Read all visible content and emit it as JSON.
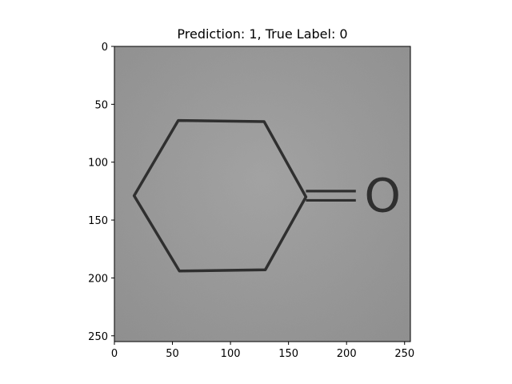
{
  "chart_data": {
    "type": "image",
    "title": "Prediction: 1, True Label: 0",
    "xlabel": "",
    "ylabel": "",
    "xlim": [
      0,
      255
    ],
    "ylim": [
      255,
      0
    ],
    "xticks": [
      0,
      50,
      100,
      150,
      200,
      250
    ],
    "yticks": [
      0,
      50,
      100,
      150,
      200,
      250
    ],
    "grid": false,
    "colors": {
      "image_background": "#9a9a9a",
      "stroke": "#2f2f2f",
      "axes": "#000000"
    },
    "image_content": {
      "molecule": "cyclohexanone",
      "hexagon_vertices": [
        [
          55,
          64
        ],
        [
          129,
          65
        ],
        [
          165,
          130
        ],
        [
          130,
          193
        ],
        [
          56,
          194
        ],
        [
          17,
          129
        ]
      ],
      "double_bond": {
        "from_x": 165,
        "to_x": 208,
        "y_values": [
          125,
          133
        ]
      },
      "atom_label": {
        "text": "O",
        "x": 231,
        "y": 129
      }
    }
  }
}
